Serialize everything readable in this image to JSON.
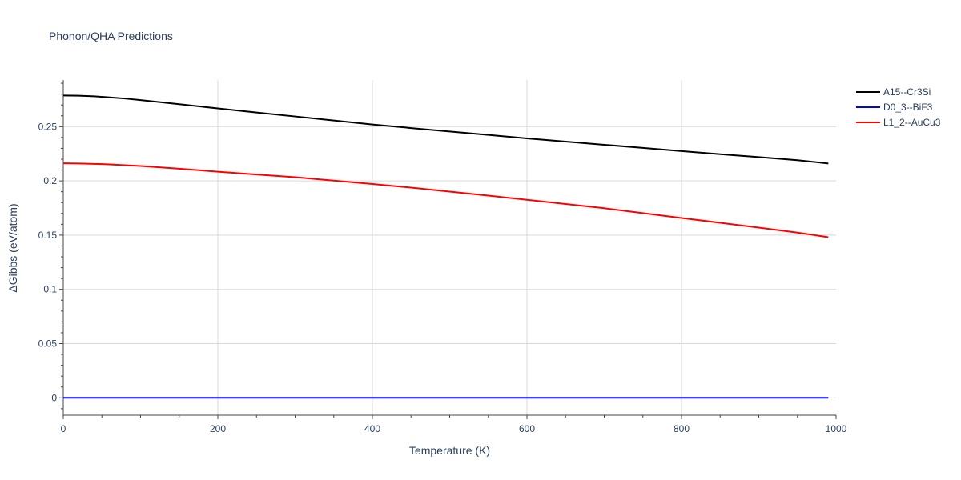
{
  "chart_data": {
    "type": "line",
    "title": "Phonon/QHA Predictions",
    "xlabel": "Temperature (K)",
    "ylabel": "ΔGibbs (eV/atom)",
    "xlim": [
      0,
      1000
    ],
    "ylim": [
      -0.016,
      0.293
    ],
    "x_ticks": [
      0,
      200,
      400,
      600,
      800,
      1000
    ],
    "x_tick_labels": [
      "0",
      "200",
      "400",
      "600",
      "800",
      "1000"
    ],
    "y_ticks": [
      0,
      0.05,
      0.1,
      0.15,
      0.2,
      0.25
    ],
    "y_tick_labels": [
      "0",
      "0.05",
      "0.1",
      "0.15",
      "0.2",
      "0.25"
    ],
    "grid": true,
    "legend_position": "top-right",
    "series": [
      {
        "name": "A15--Cr3Si",
        "color": "#000000",
        "x": [
          0,
          20,
          40,
          60,
          80,
          100,
          150,
          200,
          250,
          300,
          350,
          400,
          450,
          500,
          550,
          600,
          650,
          700,
          750,
          800,
          850,
          900,
          950,
          990
        ],
        "y": [
          0.2787,
          0.2785,
          0.278,
          0.277,
          0.2759,
          0.2745,
          0.2707,
          0.2668,
          0.263,
          0.2594,
          0.2557,
          0.252,
          0.2487,
          0.2455,
          0.2424,
          0.2392,
          0.2362,
          0.2333,
          0.2304,
          0.2275,
          0.2246,
          0.2219,
          0.2191,
          0.216
        ]
      },
      {
        "name": "D0_3--BiF3",
        "color": "#0000ff",
        "x": [
          0,
          990
        ],
        "y": [
          0,
          0
        ]
      },
      {
        "name": "L1_2--AuCu3",
        "color": "#ff0000",
        "x": [
          0,
          20,
          40,
          60,
          80,
          100,
          150,
          200,
          250,
          300,
          350,
          400,
          450,
          500,
          550,
          600,
          650,
          700,
          750,
          800,
          850,
          900,
          950,
          990
        ],
        "y": [
          0.2162,
          0.216,
          0.2157,
          0.2152,
          0.2145,
          0.2137,
          0.2112,
          0.2085,
          0.2059,
          0.2034,
          0.2003,
          0.1971,
          0.1938,
          0.1901,
          0.1864,
          0.1826,
          0.1787,
          0.1748,
          0.1703,
          0.1658,
          0.1614,
          0.1569,
          0.1523,
          0.1481
        ]
      }
    ]
  }
}
